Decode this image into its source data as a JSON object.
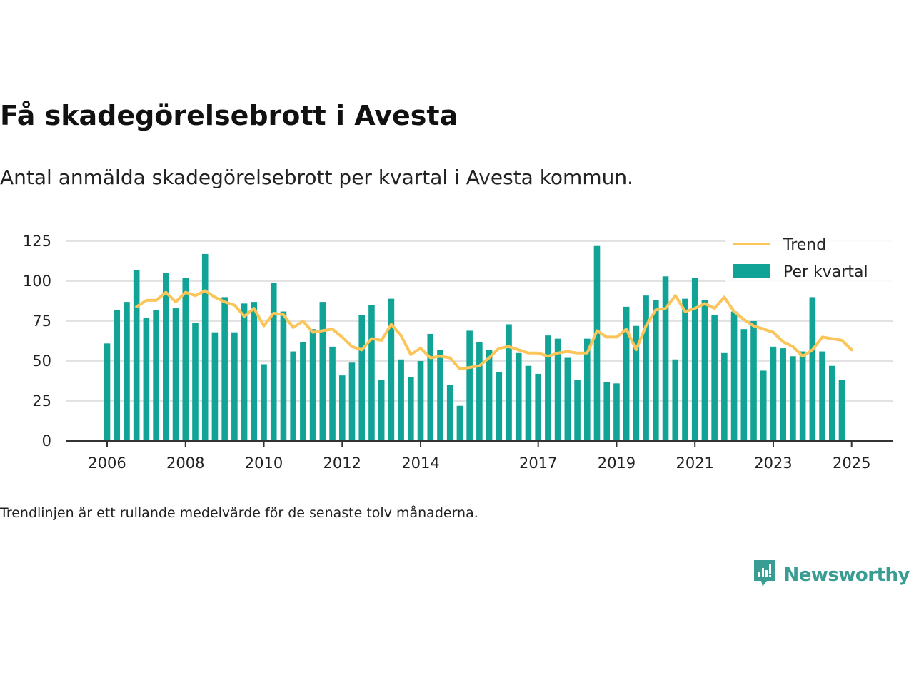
{
  "header": {
    "title": "Få skadegörelsebrott i Avesta",
    "subtitle": "Antal anmälda skadegörelsebrott per kvartal i Avesta kommun."
  },
  "footer": {
    "note": "Trendlinjen är ett rullande medelvärde för de senaste tolv månaderna.",
    "brand": "Newsworthy",
    "brand_icon": "newsworthy-logo-icon"
  },
  "colors": {
    "bars": "#11a396",
    "trend": "#fbc55a",
    "brand": "#3a9d94",
    "grid": "#d9d9d9",
    "axis": "#333333"
  },
  "chart_data": {
    "type": "bar",
    "x": [
      "2006-Q1",
      "2006-Q2",
      "2006-Q3",
      "2006-Q4",
      "2007-Q1",
      "2007-Q2",
      "2007-Q3",
      "2007-Q4",
      "2008-Q1",
      "2008-Q2",
      "2008-Q3",
      "2008-Q4",
      "2009-Q1",
      "2009-Q2",
      "2009-Q3",
      "2009-Q4",
      "2010-Q1",
      "2010-Q2",
      "2010-Q3",
      "2010-Q4",
      "2011-Q1",
      "2011-Q2",
      "2011-Q3",
      "2011-Q4",
      "2012-Q1",
      "2012-Q2",
      "2012-Q3",
      "2012-Q4",
      "2013-Q1",
      "2013-Q2",
      "2013-Q3",
      "2013-Q4",
      "2014-Q1",
      "2014-Q2",
      "2014-Q3",
      "2014-Q4",
      "2015-Q1",
      "2015-Q2",
      "2015-Q3",
      "2015-Q4",
      "2016-Q1",
      "2016-Q2",
      "2016-Q3",
      "2016-Q4",
      "2017-Q1",
      "2017-Q2",
      "2017-Q3",
      "2017-Q4",
      "2018-Q1",
      "2018-Q2",
      "2018-Q3",
      "2018-Q4",
      "2019-Q1",
      "2019-Q2",
      "2019-Q3",
      "2019-Q4",
      "2020-Q1",
      "2020-Q2",
      "2020-Q3",
      "2020-Q4",
      "2021-Q1",
      "2021-Q2",
      "2021-Q3",
      "2021-Q4",
      "2022-Q1",
      "2022-Q2",
      "2022-Q3",
      "2022-Q4",
      "2023-Q1",
      "2023-Q2",
      "2023-Q3",
      "2023-Q4",
      "2024-Q1",
      "2024-Q2",
      "2024-Q3",
      "2024-Q4",
      "2025-Q1"
    ],
    "x_tick_labels": [
      "2006",
      "2008",
      "2010",
      "2012",
      "2014",
      "2017",
      "2019",
      "2021",
      "2023",
      "2025"
    ],
    "series": [
      {
        "name": "Per kvartal",
        "kind": "bar",
        "values": [
          61,
          82,
          87,
          107,
          77,
          82,
          105,
          83,
          102,
          74,
          117,
          68,
          90,
          68,
          86,
          87,
          48,
          99,
          81,
          56,
          62,
          70,
          87,
          59,
          41,
          49,
          79,
          85,
          38,
          89,
          51,
          40,
          50,
          67,
          57,
          35,
          22,
          69,
          62,
          57,
          43,
          73,
          55,
          47,
          42,
          66,
          64,
          52,
          38,
          64,
          122,
          37,
          36,
          84,
          72,
          91,
          88,
          103,
          51,
          89,
          102,
          88,
          79,
          55,
          81,
          70,
          75,
          44,
          59,
          58,
          53,
          56,
          90,
          56,
          47,
          38,
          null
        ]
      },
      {
        "name": "Trend",
        "kind": "line",
        "values": [
          null,
          null,
          null,
          84,
          88,
          88,
          93,
          87,
          93,
          91,
          94,
          90,
          87,
          85,
          78,
          83,
          72,
          80,
          79,
          71,
          75,
          68,
          69,
          70,
          65,
          59,
          57,
          64,
          63,
          73,
          66,
          54,
          58,
          52,
          53,
          52,
          45,
          46,
          47,
          52,
          58,
          59,
          57,
          55,
          55,
          53,
          55,
          56,
          55,
          55,
          69,
          65,
          65,
          70,
          57,
          72,
          82,
          83,
          91,
          81,
          83,
          86,
          83,
          90,
          81,
          76,
          72,
          70,
          68,
          62,
          59,
          53,
          57,
          65,
          64,
          63,
          57
        ]
      }
    ],
    "ylim": [
      0,
      125
    ],
    "y_ticks": [
      0,
      25,
      50,
      75,
      100,
      125
    ],
    "grid": true,
    "legend_placement": "top-right",
    "xlabel": "",
    "ylabel": ""
  }
}
